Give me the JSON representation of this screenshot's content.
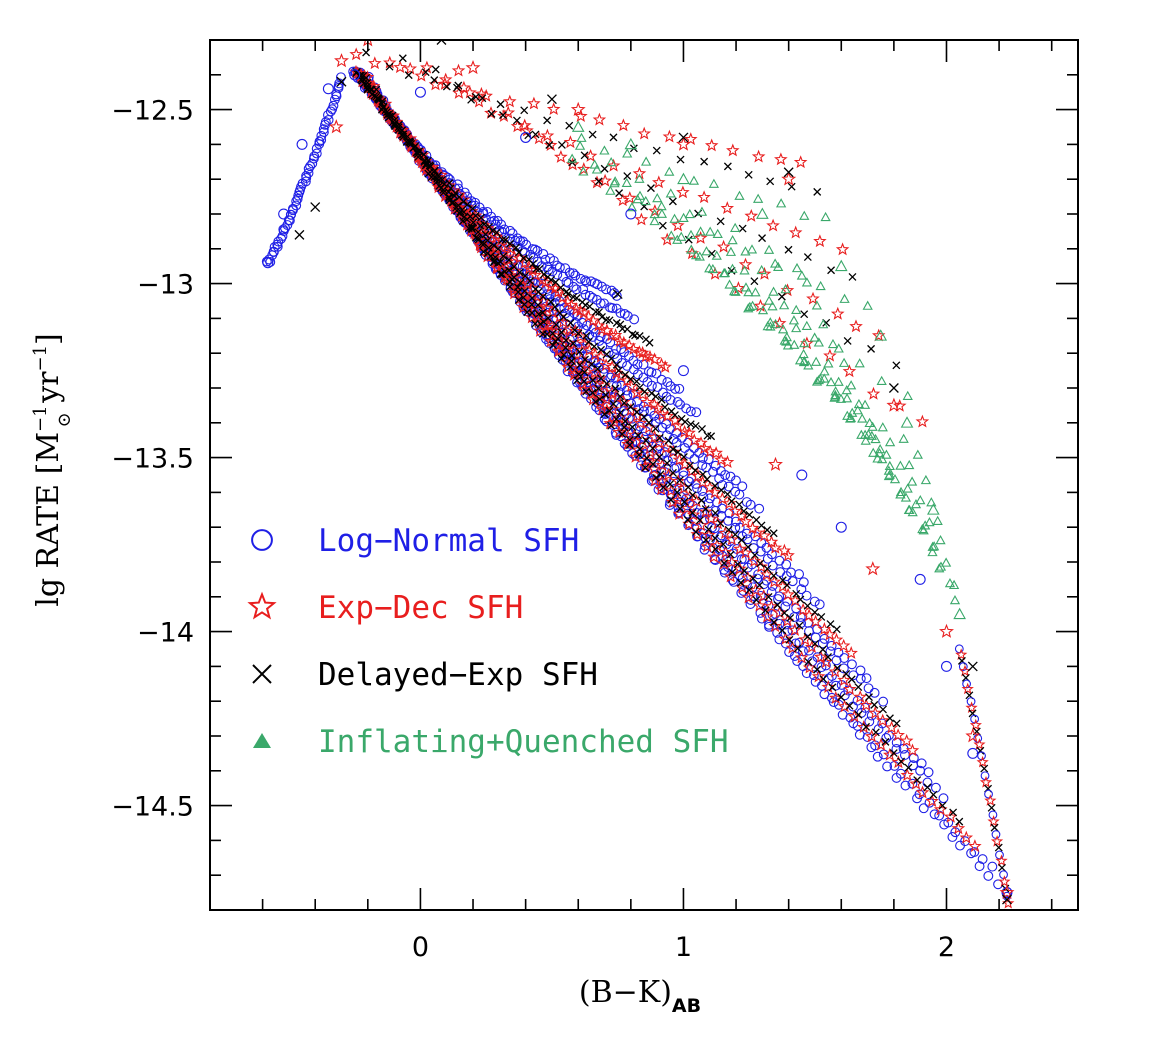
{
  "chart_data": {
    "type": "scatter",
    "title": "",
    "xlabel": {
      "main": "(B−K)",
      "sub": "AB"
    },
    "ylabel": {
      "prefix": "lg RATE [M",
      "sup1": "−1",
      "sub": "⊙",
      "middle": " yr",
      "sup2": "−1",
      "suffix": "]"
    },
    "xlim": [
      -0.8,
      2.5
    ],
    "ylim": [
      -14.8,
      -12.3
    ],
    "x_ticks": [
      {
        "value": 0,
        "label": "0"
      },
      {
        "value": 1,
        "label": "1"
      },
      {
        "value": 2,
        "label": "2"
      }
    ],
    "y_ticks": [
      {
        "value": -12.5,
        "label": "−12.5"
      },
      {
        "value": -13,
        "label": "−13"
      },
      {
        "value": -13.5,
        "label": "−13.5"
      },
      {
        "value": -14,
        "label": "−14"
      },
      {
        "value": -14.5,
        "label": "−14.5"
      }
    ],
    "x_minor_step": 0.2,
    "y_minor_step": 0.1,
    "legend_position": "lower-left",
    "series": [
      {
        "name": "Log−Normal SFH",
        "marker": "circle",
        "color": "#1f1fe6",
        "sample_points": [
          [
            -0.58,
            -12.94
          ],
          [
            -0.52,
            -12.8
          ],
          [
            -0.45,
            -12.6
          ],
          [
            -0.35,
            -12.44
          ],
          [
            -0.25,
            -12.4
          ],
          [
            0.0,
            -12.45
          ],
          [
            0.4,
            -12.58
          ],
          [
            0.8,
            -12.8
          ],
          [
            1.0,
            -13.25
          ],
          [
            1.45,
            -13.55
          ],
          [
            1.6,
            -13.7
          ],
          [
            1.9,
            -13.85
          ],
          [
            2.0,
            -14.1
          ],
          [
            2.1,
            -14.35
          ],
          [
            2.23,
            -14.75
          ]
        ]
      },
      {
        "name": "Exp−Dec SFH",
        "marker": "star",
        "color": "#e81e1e",
        "sample_points": [
          [
            -0.32,
            -12.55
          ],
          [
            -0.3,
            -12.36
          ],
          [
            -0.2,
            -12.3
          ],
          [
            0.2,
            -12.38
          ],
          [
            0.6,
            -12.5
          ],
          [
            1.0,
            -12.6
          ],
          [
            1.4,
            -12.7
          ],
          [
            1.8,
            -13.35
          ],
          [
            1.35,
            -13.52
          ],
          [
            1.72,
            -13.82
          ],
          [
            2.0,
            -14.0
          ],
          [
            2.1,
            -14.3
          ],
          [
            2.23,
            -14.75
          ]
        ]
      },
      {
        "name": "Delayed−Exp SFH",
        "marker": "cross",
        "color": "#000000",
        "sample_points": [
          [
            -0.46,
            -12.86
          ],
          [
            -0.4,
            -12.78
          ],
          [
            -0.3,
            -12.42
          ],
          [
            -0.1,
            -12.28
          ],
          [
            0.08,
            -12.3
          ],
          [
            0.5,
            -12.47
          ],
          [
            0.75,
            -13.03
          ],
          [
            1.0,
            -12.58
          ],
          [
            1.4,
            -12.68
          ],
          [
            1.8,
            -13.3
          ],
          [
            2.1,
            -14.1
          ],
          [
            2.23,
            -14.77
          ]
        ]
      },
      {
        "name": "Inflating+Quenched SFH",
        "marker": "triangle",
        "color": "#3aa86a",
        "sample_points": [
          [
            0.6,
            -12.55
          ],
          [
            0.8,
            -12.6
          ],
          [
            1.0,
            -12.7
          ],
          [
            1.3,
            -12.8
          ],
          [
            1.6,
            -12.95
          ],
          [
            1.75,
            -13.15
          ],
          [
            1.85,
            -13.4
          ],
          [
            1.95,
            -13.65
          ],
          [
            2.05,
            -13.95
          ]
        ]
      }
    ]
  }
}
